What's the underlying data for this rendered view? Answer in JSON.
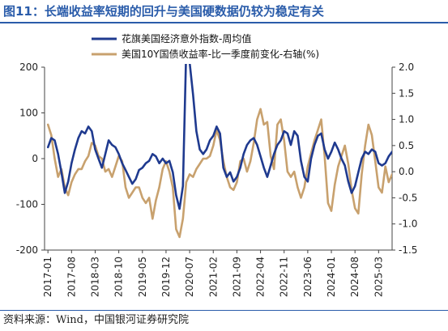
{
  "title": "图11：长端收益率短期的回升与美国硬数据仍较为稳定有关",
  "source": "资料来源：Wind，中国银河证券研究院",
  "colors": {
    "series1": "#1f3a8f",
    "series2": "#c8a16e",
    "title": "#2a5caa"
  },
  "chart_data": {
    "type": "line",
    "legend_position": "top-center",
    "grid": false,
    "x_tick_labels": [
      "2017-01",
      "2017-08",
      "2018-03",
      "2018-10",
      "2019-05",
      "2019-12",
      "2020-07",
      "2021-02",
      "2021-09",
      "2022-04",
      "2022-11",
      "2023-06",
      "2024-01",
      "2024-08",
      "2025-03"
    ],
    "x_range": [
      "2016-12",
      "2025-07"
    ],
    "y_left": {
      "range": [
        -200,
        200
      ],
      "ticks": [
        "200",
        "100",
        "0",
        "-100",
        "-200"
      ]
    },
    "y_right": {
      "range": [
        -1.5,
        2.0
      ],
      "ticks": [
        "2.0",
        "1.5",
        "1.0",
        "0.5",
        "0.0",
        "-0.5",
        "-1.0",
        "-1.5"
      ]
    },
    "series": [
      {
        "name": "花旗美国经济意外指数-周均值",
        "axis": "left",
        "points": [
          [
            "2017-01",
            25
          ],
          [
            "2017-02",
            45
          ],
          [
            "2017-03",
            40
          ],
          [
            "2017-04",
            10
          ],
          [
            "2017-05",
            -30
          ],
          [
            "2017-06",
            -75
          ],
          [
            "2017-07",
            -50
          ],
          [
            "2017-08",
            -10
          ],
          [
            "2017-09",
            20
          ],
          [
            "2017-10",
            45
          ],
          [
            "2017-11",
            60
          ],
          [
            "2017-12",
            55
          ],
          [
            "2018-01",
            70
          ],
          [
            "2018-02",
            60
          ],
          [
            "2018-03",
            20
          ],
          [
            "2018-04",
            0
          ],
          [
            "2018-05",
            -20
          ],
          [
            "2018-06",
            10
          ],
          [
            "2018-07",
            40
          ],
          [
            "2018-08",
            30
          ],
          [
            "2018-09",
            25
          ],
          [
            "2018-10",
            10
          ],
          [
            "2018-11",
            -10
          ],
          [
            "2018-12",
            -25
          ],
          [
            "2019-01",
            -40
          ],
          [
            "2019-02",
            -55
          ],
          [
            "2019-03",
            -45
          ],
          [
            "2019-04",
            -25
          ],
          [
            "2019-05",
            -20
          ],
          [
            "2019-06",
            -10
          ],
          [
            "2019-07",
            -5
          ],
          [
            "2019-08",
            10
          ],
          [
            "2019-09",
            5
          ],
          [
            "2019-10",
            -10
          ],
          [
            "2019-11",
            0
          ],
          [
            "2019-12",
            -10
          ],
          [
            "2020-01",
            -5
          ],
          [
            "2020-02",
            -30
          ],
          [
            "2020-03",
            -80
          ],
          [
            "2020-04",
            -110
          ],
          [
            "2020-05",
            -60
          ],
          [
            "2020-06",
            240
          ],
          [
            "2020-07",
            210
          ],
          [
            "2020-08",
            140
          ],
          [
            "2020-09",
            60
          ],
          [
            "2020-10",
            20
          ],
          [
            "2020-11",
            10
          ],
          [
            "2020-12",
            20
          ],
          [
            "2021-01",
            40
          ],
          [
            "2021-02",
            50
          ],
          [
            "2021-03",
            70
          ],
          [
            "2021-04",
            55
          ],
          [
            "2021-05",
            -20
          ],
          [
            "2021-06",
            -40
          ],
          [
            "2021-07",
            -30
          ],
          [
            "2021-08",
            -50
          ],
          [
            "2021-09",
            -40
          ],
          [
            "2021-10",
            -20
          ],
          [
            "2021-11",
            10
          ],
          [
            "2021-12",
            30
          ],
          [
            "2022-01",
            40
          ],
          [
            "2022-02",
            45
          ],
          [
            "2022-03",
            30
          ],
          [
            "2022-04",
            5
          ],
          [
            "2022-05",
            -20
          ],
          [
            "2022-06",
            -40
          ],
          [
            "2022-07",
            -15
          ],
          [
            "2022-08",
            10
          ],
          [
            "2022-09",
            30
          ],
          [
            "2022-10",
            40
          ],
          [
            "2022-11",
            60
          ],
          [
            "2022-12",
            55
          ],
          [
            "2023-01",
            30
          ],
          [
            "2023-02",
            60
          ],
          [
            "2023-03",
            50
          ],
          [
            "2023-04",
            -5
          ],
          [
            "2023-05",
            -40
          ],
          [
            "2023-06",
            -50
          ],
          [
            "2023-07",
            0
          ],
          [
            "2023-08",
            30
          ],
          [
            "2023-09",
            50
          ],
          [
            "2023-10",
            55
          ],
          [
            "2023-11",
            20
          ],
          [
            "2023-12",
            0
          ],
          [
            "2024-01",
            15
          ],
          [
            "2024-02",
            35
          ],
          [
            "2024-03",
            20
          ],
          [
            "2024-04",
            0
          ],
          [
            "2024-05",
            -15
          ],
          [
            "2024-06",
            -50
          ],
          [
            "2024-07",
            -75
          ],
          [
            "2024-08",
            -60
          ],
          [
            "2024-09",
            -30
          ],
          [
            "2024-10",
            0
          ],
          [
            "2024-11",
            15
          ],
          [
            "2024-12",
            10
          ],
          [
            "2025-01",
            20
          ],
          [
            "2025-02",
            15
          ],
          [
            "2025-03",
            -10
          ],
          [
            "2025-04",
            -15
          ],
          [
            "2025-05",
            -10
          ],
          [
            "2025-06",
            5
          ],
          [
            "2025-07",
            15
          ]
        ]
      },
      {
        "name": "美国10Y国债收益率-比一季度前变化-右轴(%)",
        "axis": "right",
        "points": [
          [
            "2017-01",
            0.9
          ],
          [
            "2017-02",
            0.7
          ],
          [
            "2017-03",
            0.25
          ],
          [
            "2017-04",
            -0.1
          ],
          [
            "2017-05",
            0.05
          ],
          [
            "2017-06",
            -0.3
          ],
          [
            "2017-07",
            -0.45
          ],
          [
            "2017-08",
            -0.2
          ],
          [
            "2017-09",
            -0.05
          ],
          [
            "2017-10",
            0.05
          ],
          [
            "2017-11",
            0.05
          ],
          [
            "2017-12",
            0.2
          ],
          [
            "2018-01",
            0.3
          ],
          [
            "2018-02",
            0.55
          ],
          [
            "2018-03",
            0.5
          ],
          [
            "2018-04",
            0.3
          ],
          [
            "2018-05",
            0.25
          ],
          [
            "2018-06",
            0.0
          ],
          [
            "2018-07",
            0.05
          ],
          [
            "2018-08",
            -0.1
          ],
          [
            "2018-09",
            0.1
          ],
          [
            "2018-10",
            0.3
          ],
          [
            "2018-11",
            0.2
          ],
          [
            "2018-12",
            -0.3
          ],
          [
            "2019-01",
            -0.5
          ],
          [
            "2019-02",
            -0.4
          ],
          [
            "2019-03",
            -0.3
          ],
          [
            "2019-04",
            -0.3
          ],
          [
            "2019-05",
            -0.5
          ],
          [
            "2019-06",
            -0.6
          ],
          [
            "2019-07",
            -0.5
          ],
          [
            "2019-08",
            -0.9
          ],
          [
            "2019-09",
            -0.55
          ],
          [
            "2019-10",
            -0.3
          ],
          [
            "2019-11",
            0.05
          ],
          [
            "2019-12",
            0.2
          ],
          [
            "2020-01",
            0.0
          ],
          [
            "2020-02",
            -0.3
          ],
          [
            "2020-03",
            -1.1
          ],
          [
            "2020-04",
            -1.25
          ],
          [
            "2020-05",
            -0.9
          ],
          [
            "2020-06",
            -0.2
          ],
          [
            "2020-07",
            -0.05
          ],
          [
            "2020-08",
            -0.1
          ],
          [
            "2020-09",
            0.05
          ],
          [
            "2020-10",
            0.15
          ],
          [
            "2020-11",
            0.25
          ],
          [
            "2020-12",
            0.25
          ],
          [
            "2021-01",
            0.3
          ],
          [
            "2021-02",
            0.5
          ],
          [
            "2021-03",
            0.8
          ],
          [
            "2021-04",
            0.6
          ],
          [
            "2021-05",
            0.2
          ],
          [
            "2021-06",
            -0.1
          ],
          [
            "2021-07",
            -0.3
          ],
          [
            "2021-08",
            -0.35
          ],
          [
            "2021-09",
            -0.2
          ],
          [
            "2021-10",
            0.2
          ],
          [
            "2021-11",
            0.25
          ],
          [
            "2021-12",
            0.0
          ],
          [
            "2022-01",
            0.2
          ],
          [
            "2022-02",
            0.55
          ],
          [
            "2022-03",
            1.0
          ],
          [
            "2022-04",
            1.2
          ],
          [
            "2022-05",
            0.9
          ],
          [
            "2022-06",
            0.95
          ],
          [
            "2022-07",
            0.3
          ],
          [
            "2022-08",
            0.05
          ],
          [
            "2022-09",
            0.9
          ],
          [
            "2022-10",
            1.0
          ],
          [
            "2022-11",
            0.6
          ],
          [
            "2022-12",
            0.0
          ],
          [
            "2023-01",
            -0.1
          ],
          [
            "2023-02",
            0.0
          ],
          [
            "2023-03",
            -0.3
          ],
          [
            "2023-04",
            -0.5
          ],
          [
            "2023-05",
            -0.3
          ],
          [
            "2023-06",
            0.1
          ],
          [
            "2023-07",
            0.35
          ],
          [
            "2023-08",
            0.6
          ],
          [
            "2023-09",
            0.8
          ],
          [
            "2023-10",
            1.0
          ],
          [
            "2023-11",
            0.3
          ],
          [
            "2023-12",
            -0.6
          ],
          [
            "2024-01",
            -0.75
          ],
          [
            "2024-02",
            -0.25
          ],
          [
            "2024-03",
            0.1
          ],
          [
            "2024-04",
            0.3
          ],
          [
            "2024-05",
            0.5
          ],
          [
            "2024-06",
            0.15
          ],
          [
            "2024-07",
            -0.35
          ],
          [
            "2024-08",
            -0.7
          ],
          [
            "2024-09",
            -0.8
          ],
          [
            "2024-10",
            -0.05
          ],
          [
            "2024-11",
            0.5
          ],
          [
            "2024-12",
            0.9
          ],
          [
            "2025-01",
            0.7
          ],
          [
            "2025-02",
            0.2
          ],
          [
            "2025-03",
            -0.3
          ],
          [
            "2025-04",
            -0.4
          ],
          [
            "2025-05",
            0.1
          ],
          [
            "2025-06",
            -0.2
          ],
          [
            "2025-07",
            -0.05
          ]
        ]
      }
    ]
  }
}
